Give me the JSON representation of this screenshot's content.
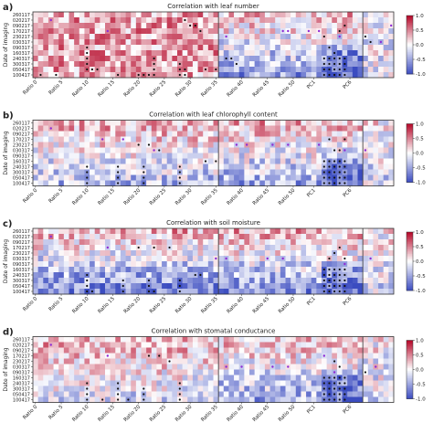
{
  "chart_data": [
    {
      "type": "heatmap",
      "panel_label": "a)",
      "title": "Correlation with leaf number",
      "ylabel": "Date of imaging",
      "dates": [
        "260117",
        "020217",
        "090217",
        "170217",
        "230217",
        "030317",
        "090317",
        "160317",
        "240317",
        "300317",
        "050417",
        "100417"
      ],
      "x_tick_labels": [
        "Ratio 0",
        "Ratio 5",
        "Ratio 10",
        "Ratio 15",
        "Ratio 20",
        "Ratio 25",
        "Ratio 30",
        "Ratio 35",
        "Ratio 40",
        "Ratio 45",
        "Ratio 50",
        "PC1",
        "PC6"
      ],
      "colorbar": {
        "min": -1.0,
        "max": 1.0,
        "ticks": [
          "1.0",
          "0.5",
          "0.0",
          "-0.5",
          "-1.0"
        ]
      },
      "seed": 11,
      "base_top": 0.35,
      "base_bottom": 0.35,
      "seg2_top": 0.25,
      "seg2_bottom": -0.55,
      "black_markers": [
        [
          10,
          6
        ],
        [
          10,
          7
        ],
        [
          10,
          8
        ],
        [
          10,
          9
        ],
        [
          10,
          10
        ],
        [
          11,
          10
        ],
        [
          12,
          10
        ],
        [
          16,
          11
        ],
        [
          20,
          11
        ],
        [
          21,
          11
        ],
        [
          22,
          11
        ],
        [
          23,
          8
        ],
        [
          23,
          9
        ],
        [
          23,
          10
        ],
        [
          23,
          11
        ],
        [
          28,
          9
        ],
        [
          28,
          10
        ],
        [
          28,
          11
        ],
        [
          29,
          10
        ],
        [
          29,
          11
        ],
        [
          33,
          10
        ],
        [
          35,
          10
        ],
        [
          37,
          8
        ],
        [
          38,
          8
        ],
        [
          39,
          9
        ],
        [
          29,
          1
        ],
        [
          30,
          2
        ],
        [
          31,
          2
        ],
        [
          32,
          3
        ],
        [
          56,
          11
        ],
        [
          57,
          11
        ],
        [
          58,
          11
        ],
        [
          59,
          11
        ],
        [
          60,
          11
        ],
        [
          56,
          10
        ],
        [
          57,
          10
        ],
        [
          58,
          10
        ],
        [
          59,
          10
        ],
        [
          60,
          10
        ],
        [
          56,
          9
        ],
        [
          57,
          9
        ],
        [
          58,
          9
        ],
        [
          59,
          9
        ],
        [
          60,
          9
        ],
        [
          56,
          8
        ],
        [
          57,
          8
        ],
        [
          58,
          8
        ],
        [
          59,
          8
        ],
        [
          60,
          8
        ],
        [
          57,
          6
        ],
        [
          58,
          7
        ],
        [
          56,
          4
        ],
        [
          59,
          3
        ],
        [
          60,
          2
        ],
        [
          64,
          4
        ],
        [
          65,
          5
        ],
        [
          4,
          11
        ],
        [
          1,
          11
        ]
      ],
      "purple_markers": [
        [
          3,
          1
        ],
        [
          14,
          3
        ],
        [
          37,
          4
        ],
        [
          48,
          3
        ],
        [
          49,
          3
        ],
        [
          53,
          3
        ],
        [
          55,
          3
        ],
        [
          59,
          4
        ],
        [
          67,
          5
        ],
        [
          69,
          2
        ]
      ]
    },
    {
      "type": "heatmap",
      "panel_label": "b)",
      "title": "Correlation with leaf chlorophyll content",
      "ylabel": "Date of imaging",
      "dates": [
        "260117",
        "020217",
        "090217",
        "170217",
        "230217",
        "030317",
        "090317",
        "160317",
        "240317",
        "300317",
        "050417",
        "100417"
      ],
      "x_tick_labels": [
        "Ratio 0",
        "Ratio 5",
        "Ratio 10",
        "Ratio 15",
        "Ratio 20",
        "Ratio 25",
        "Ratio 30",
        "Ratio 35",
        "Ratio 40",
        "Ratio 45",
        "Ratio 50",
        "PC1",
        "PC6"
      ],
      "colorbar": {
        "min": -1.0,
        "max": 1.0,
        "ticks": [
          "1.0",
          "0.5",
          "0.0",
          "-0.5",
          "-1.0"
        ]
      },
      "seed": 23,
      "base_top": 0.3,
      "base_bottom": -0.35,
      "seg2_top": 0.3,
      "seg2_bottom": -0.45,
      "black_markers": [
        [
          10,
          8
        ],
        [
          10,
          9
        ],
        [
          10,
          10
        ],
        [
          10,
          11
        ],
        [
          16,
          8
        ],
        [
          16,
          9
        ],
        [
          16,
          10
        ],
        [
          16,
          11
        ],
        [
          21,
          8
        ],
        [
          21,
          9
        ],
        [
          21,
          10
        ],
        [
          21,
          11
        ],
        [
          28,
          8
        ],
        [
          28,
          9
        ],
        [
          28,
          10
        ],
        [
          28,
          11
        ],
        [
          33,
          7
        ],
        [
          35,
          7
        ],
        [
          20,
          4
        ],
        [
          22,
          4
        ],
        [
          24,
          5
        ],
        [
          56,
          7
        ],
        [
          57,
          7
        ],
        [
          58,
          7
        ],
        [
          59,
          7
        ],
        [
          60,
          7
        ],
        [
          56,
          8
        ],
        [
          57,
          8
        ],
        [
          58,
          8
        ],
        [
          59,
          8
        ],
        [
          60,
          8
        ],
        [
          56,
          9
        ],
        [
          57,
          9
        ],
        [
          58,
          9
        ],
        [
          59,
          9
        ],
        [
          60,
          9
        ],
        [
          56,
          10
        ],
        [
          57,
          10
        ],
        [
          58,
          10
        ],
        [
          59,
          10
        ],
        [
          60,
          10
        ],
        [
          56,
          11
        ],
        [
          57,
          11
        ],
        [
          58,
          11
        ],
        [
          59,
          11
        ],
        [
          60,
          11
        ],
        [
          58,
          5
        ],
        [
          59,
          5
        ],
        [
          57,
          3
        ],
        [
          60,
          3
        ]
      ],
      "purple_markers": [
        [
          3,
          1
        ],
        [
          13,
          3
        ],
        [
          17,
          3
        ],
        [
          23,
          5
        ],
        [
          39,
          4
        ],
        [
          41,
          4
        ],
        [
          46,
          4
        ],
        [
          49,
          4
        ],
        [
          55,
          4
        ],
        [
          60,
          5
        ],
        [
          64,
          5
        ]
      ]
    },
    {
      "type": "heatmap",
      "panel_label": "c)",
      "title": "Correlation with soil moisture",
      "ylabel": "Date of imaging",
      "dates": [
        "260117",
        "020217",
        "090217",
        "170217",
        "230217",
        "030317",
        "090317",
        "160317",
        "240317",
        "300317",
        "050417",
        "100417"
      ],
      "x_tick_labels": [
        "Ratio 0",
        "Ratio 5",
        "Ratio 10",
        "Ratio 15",
        "Ratio 20",
        "Ratio 25",
        "Ratio 30",
        "Ratio 35",
        "Ratio 40",
        "Ratio 45",
        "Ratio 50",
        "PC1",
        "PC6"
      ],
      "colorbar": {
        "min": -1.0,
        "max": 1.0,
        "ticks": [
          "1.0",
          "0.5",
          "0.0",
          "-0.5",
          "-1.0"
        ]
      },
      "seed": 37,
      "base_top": 0.3,
      "base_bottom": -0.7,
      "seg2_top": 0.3,
      "seg2_bottom": -0.6,
      "black_markers": [
        [
          10,
          8
        ],
        [
          10,
          9
        ],
        [
          10,
          10
        ],
        [
          10,
          11
        ],
        [
          11,
          11
        ],
        [
          17,
          9
        ],
        [
          17,
          10
        ],
        [
          17,
          11
        ],
        [
          22,
          9
        ],
        [
          22,
          10
        ],
        [
          22,
          11
        ],
        [
          23,
          11
        ],
        [
          28,
          9
        ],
        [
          28,
          10
        ],
        [
          28,
          11
        ],
        [
          20,
          3
        ],
        [
          23,
          3
        ],
        [
          26,
          3
        ],
        [
          31,
          8
        ],
        [
          32,
          8
        ],
        [
          56,
          7
        ],
        [
          57,
          7
        ],
        [
          58,
          7
        ],
        [
          59,
          7
        ],
        [
          60,
          7
        ],
        [
          56,
          8
        ],
        [
          57,
          8
        ],
        [
          58,
          8
        ],
        [
          59,
          8
        ],
        [
          60,
          8
        ],
        [
          56,
          9
        ],
        [
          57,
          9
        ],
        [
          58,
          9
        ],
        [
          59,
          9
        ],
        [
          60,
          9
        ],
        [
          56,
          10
        ],
        [
          57,
          10
        ],
        [
          58,
          10
        ],
        [
          59,
          10
        ],
        [
          60,
          10
        ],
        [
          56,
          11
        ],
        [
          57,
          11
        ],
        [
          58,
          11
        ],
        [
          59,
          11
        ],
        [
          60,
          11
        ],
        [
          58,
          4
        ],
        [
          59,
          3
        ],
        [
          57,
          5
        ],
        [
          60,
          5
        ]
      ],
      "purple_markers": [
        [
          3,
          1
        ],
        [
          14,
          3
        ],
        [
          35,
          5
        ],
        [
          37,
          5
        ],
        [
          45,
          5
        ],
        [
          48,
          5
        ],
        [
          60,
          6
        ],
        [
          65,
          5
        ]
      ]
    },
    {
      "type": "heatmap",
      "panel_label": "d)",
      "title": "Correlation with stomatal conductance",
      "ylabel": "Date of imaging",
      "dates": [
        "260117",
        "020217",
        "090217",
        "170217",
        "230217",
        "030317",
        "090317",
        "160317",
        "240317",
        "300317",
        "050417",
        "100417"
      ],
      "x_tick_labels": [
        "Ratio 0",
        "Ratio 5",
        "Ratio 10",
        "Ratio 15",
        "Ratio 20",
        "Ratio 25",
        "Ratio 30",
        "Ratio 35",
        "Ratio 40",
        "Ratio 45",
        "Ratio 50",
        "PC1",
        "PC6"
      ],
      "colorbar": {
        "min": -1.0,
        "max": 1.0,
        "ticks": [
          "1.0",
          "0.5",
          "0.0",
          "-0.5",
          "-1.0"
        ]
      },
      "seed": 53,
      "base_top": 0.3,
      "base_bottom": -0.2,
      "seg2_top": 0.25,
      "seg2_bottom": -0.45,
      "black_markers": [
        [
          10,
          8
        ],
        [
          10,
          9
        ],
        [
          10,
          10
        ],
        [
          10,
          11
        ],
        [
          16,
          8
        ],
        [
          16,
          9
        ],
        [
          16,
          10
        ],
        [
          16,
          11
        ],
        [
          21,
          9
        ],
        [
          21,
          10
        ],
        [
          21,
          11
        ],
        [
          28,
          8
        ],
        [
          28,
          9
        ],
        [
          28,
          10
        ],
        [
          28,
          11
        ],
        [
          22,
          3
        ],
        [
          24,
          3
        ],
        [
          26,
          4
        ],
        [
          13,
          11
        ],
        [
          18,
          11
        ],
        [
          56,
          7
        ],
        [
          57,
          7
        ],
        [
          58,
          7
        ],
        [
          59,
          7
        ],
        [
          60,
          7
        ],
        [
          56,
          8
        ],
        [
          57,
          8
        ],
        [
          58,
          8
        ],
        [
          59,
          8
        ],
        [
          60,
          8
        ],
        [
          56,
          9
        ],
        [
          57,
          9
        ],
        [
          58,
          9
        ],
        [
          59,
          9
        ],
        [
          60,
          9
        ],
        [
          56,
          10
        ],
        [
          57,
          10
        ],
        [
          58,
          10
        ],
        [
          59,
          10
        ],
        [
          60,
          10
        ],
        [
          56,
          11
        ],
        [
          57,
          11
        ],
        [
          58,
          11
        ],
        [
          59,
          11
        ],
        [
          60,
          11
        ],
        [
          58,
          4
        ],
        [
          59,
          5
        ],
        [
          64,
          6
        ]
      ],
      "purple_markers": [
        [
          3,
          1
        ],
        [
          14,
          3
        ],
        [
          37,
          5
        ],
        [
          40,
          5
        ],
        [
          46,
          5
        ],
        [
          49,
          5
        ],
        [
          56,
          3
        ],
        [
          58,
          6
        ],
        [
          66,
          5
        ]
      ]
    }
  ]
}
